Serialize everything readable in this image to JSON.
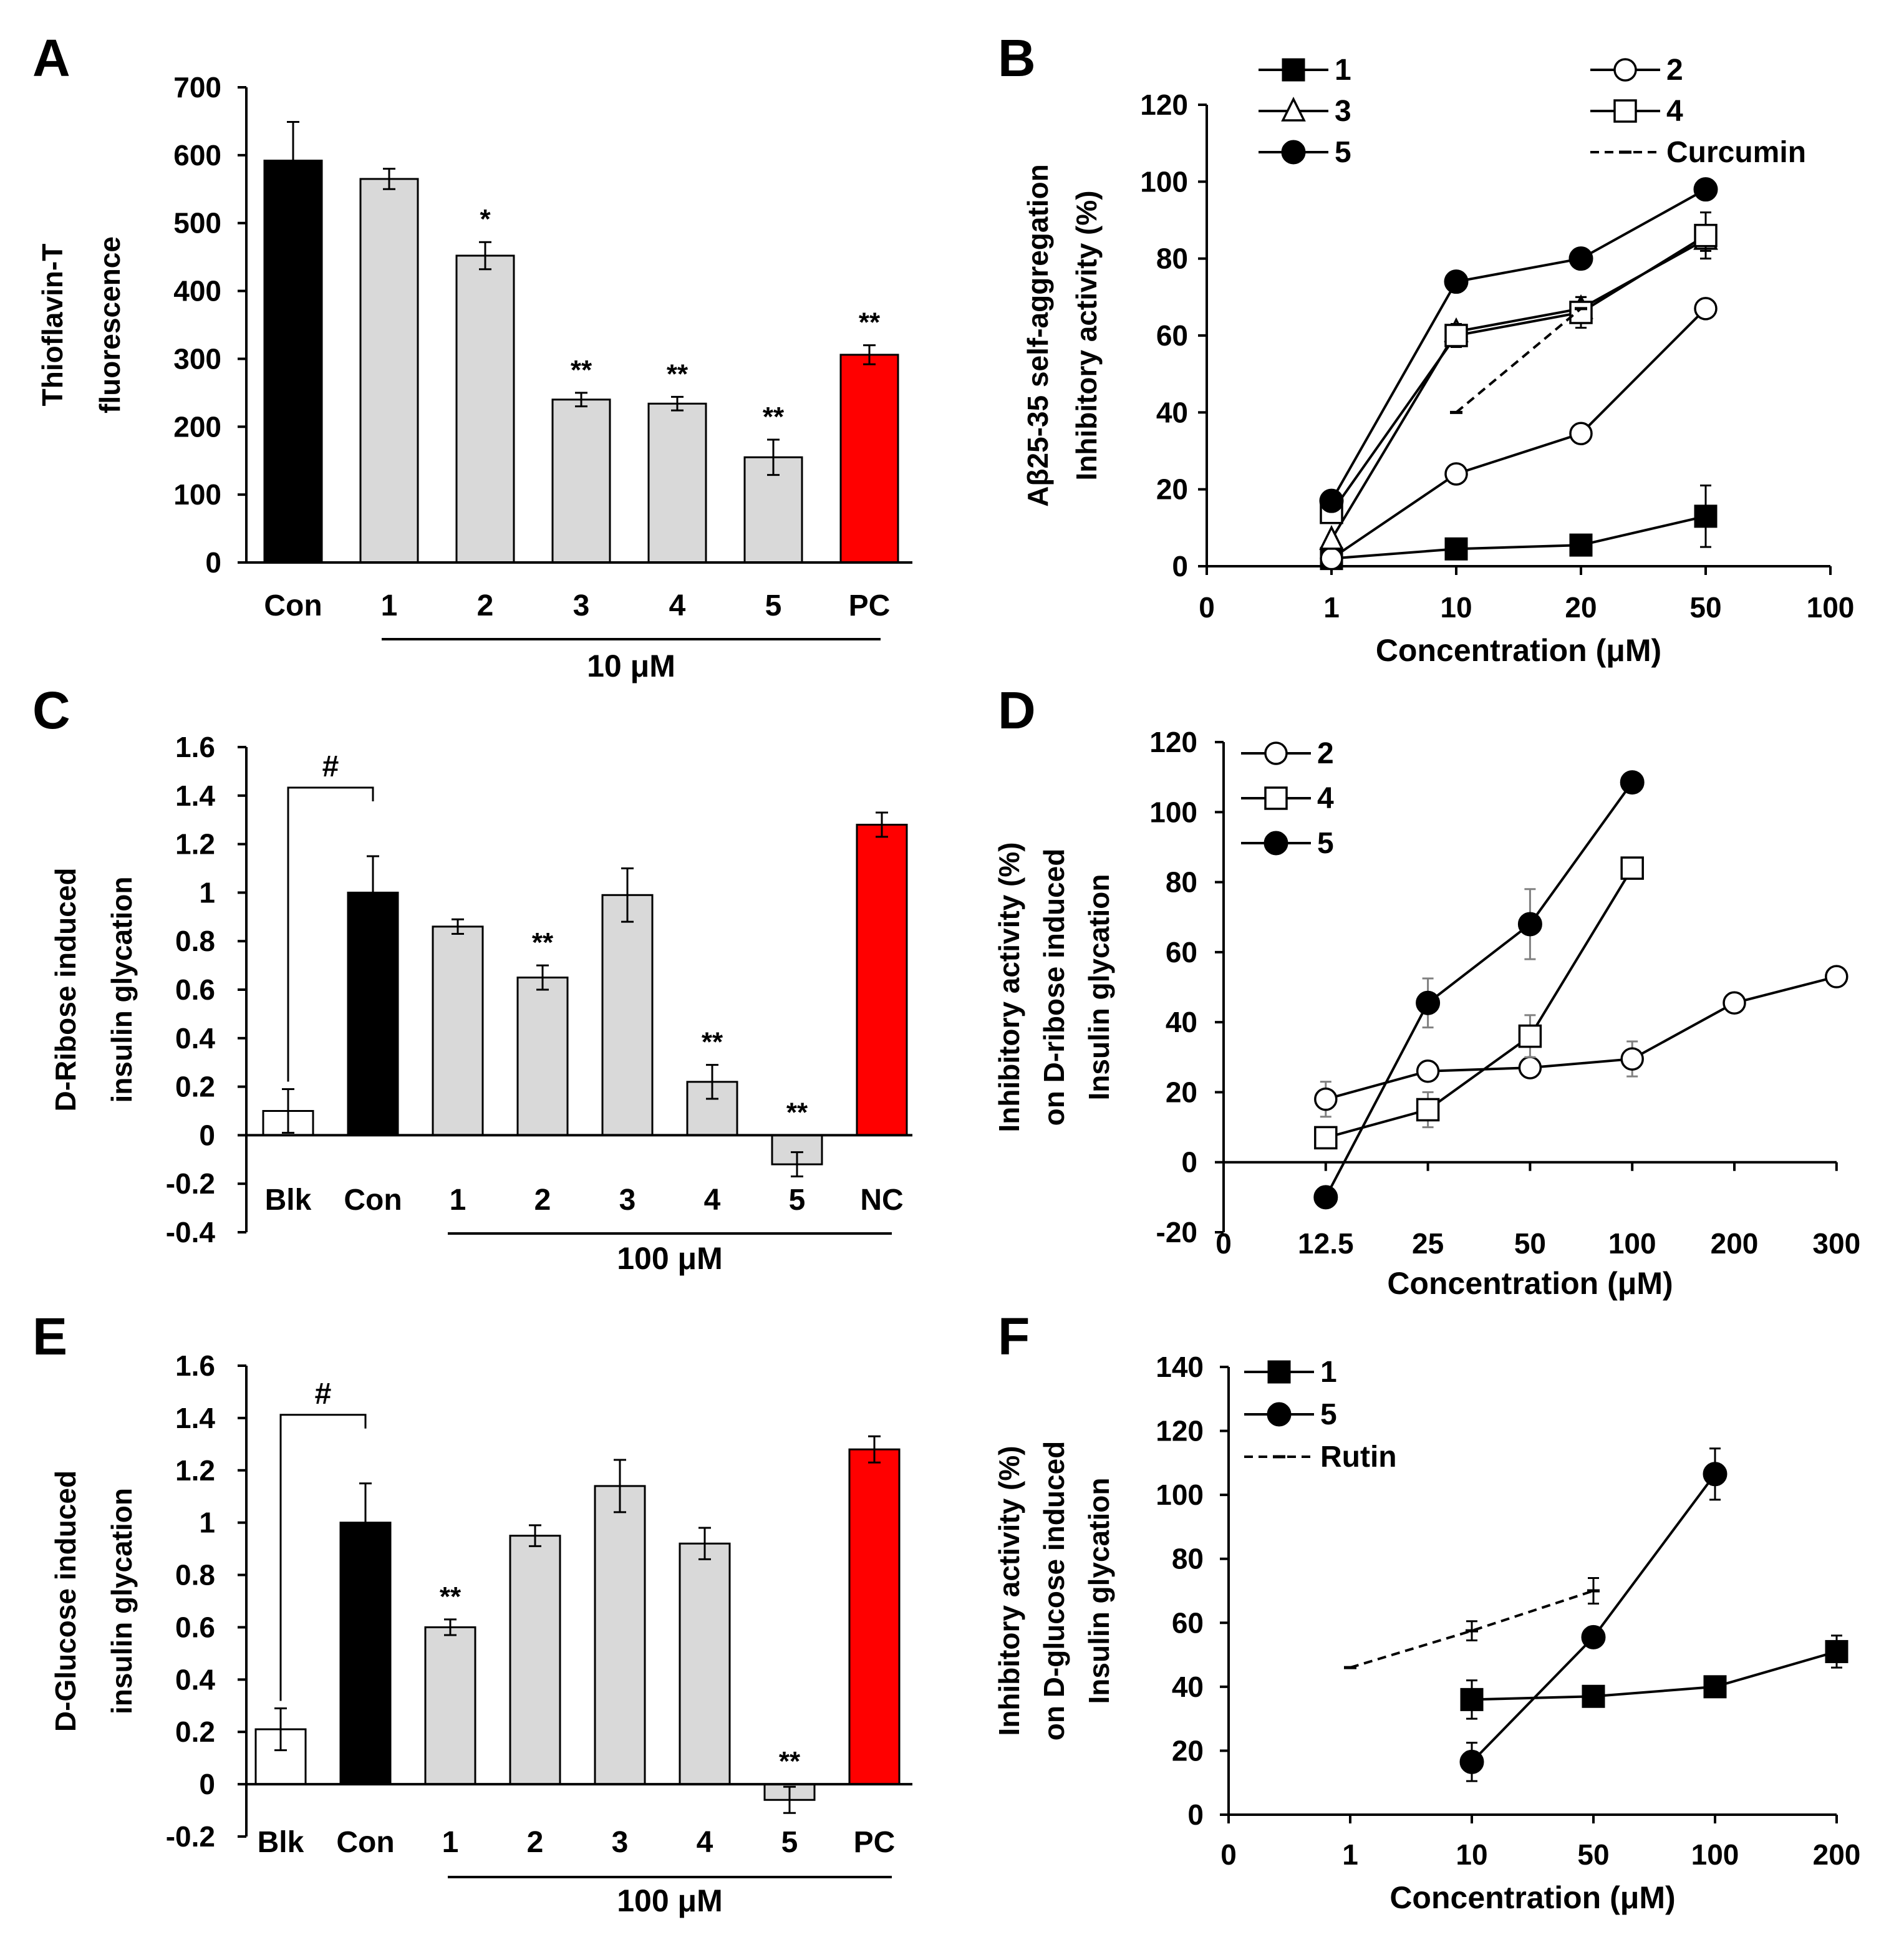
{
  "figure_title": "Six-panel figure: thioflavin-T fluorescence, Aβ25-35 self-aggregation inhibition, and insulin glycation assays",
  "chart_data": [
    {
      "id": "A",
      "panel_letter": "A",
      "type": "bar",
      "ylabel": [
        "Thioflavin-T",
        "fluorescence"
      ],
      "ylim": [
        0,
        700
      ],
      "yticks": [
        "0",
        "100",
        "200",
        "300",
        "400",
        "500",
        "600",
        "700"
      ],
      "ytick_values": [
        0,
        100,
        200,
        300,
        400,
        500,
        600,
        700
      ],
      "categories": [
        "Con",
        "1",
        "2",
        "3",
        "4",
        "5",
        "PC"
      ],
      "values": [
        592,
        565,
        452,
        240,
        234,
        155,
        306
      ],
      "errors": [
        57,
        15,
        20,
        10,
        10,
        26,
        14
      ],
      "colors": [
        "#000000",
        "#d9d9d9",
        "#d9d9d9",
        "#d9d9d9",
        "#d9d9d9",
        "#d9d9d9",
        "#ff0000"
      ],
      "significance": [
        "",
        "",
        "*",
        "**",
        "**",
        "**",
        "**"
      ],
      "group_label": "10 μM",
      "group_range": [
        1,
        6
      ]
    },
    {
      "id": "B",
      "panel_letter": "B",
      "type": "line",
      "ylabel": [
        "Aβ25-35 self-aggregation",
        "Inhibitory activity (%)"
      ],
      "xlabel": "Concentration (μM)",
      "ylim": [
        0,
        120
      ],
      "yticks": [
        "0",
        "20",
        "40",
        "60",
        "80",
        "100",
        "120"
      ],
      "ytick_values": [
        0,
        20,
        40,
        60,
        80,
        100,
        120
      ],
      "xticks": [
        "0",
        "1",
        "10",
        "20",
        "50",
        "100"
      ],
      "series": [
        {
          "name": "1",
          "marker": "filled-square",
          "x_index": [
            1,
            2,
            3,
            4
          ],
          "values": [
            2,
            4.5,
            5.5,
            13
          ],
          "errors": [
            0,
            0,
            0,
            8
          ]
        },
        {
          "name": "2",
          "marker": "open-circle",
          "x_index": [
            1,
            2,
            3,
            4
          ],
          "values": [
            2,
            24,
            34.5,
            67
          ],
          "errors": [
            0,
            0,
            0,
            2
          ]
        },
        {
          "name": "3",
          "marker": "open-triangle",
          "x_index": [
            1,
            2,
            3,
            4
          ],
          "values": [
            7,
            61,
            67,
            85
          ],
          "errors": [
            0,
            0,
            3,
            3
          ]
        },
        {
          "name": "4",
          "marker": "open-square",
          "x_index": [
            1,
            2,
            3,
            4
          ],
          "values": [
            14,
            60,
            66,
            86
          ],
          "errors": [
            0,
            3,
            4,
            6
          ]
        },
        {
          "name": "5",
          "marker": "filled-circle",
          "x_index": [
            1,
            2,
            3,
            4
          ],
          "values": [
            17,
            74,
            80,
            98
          ],
          "errors": [
            0,
            0,
            0,
            0
          ]
        },
        {
          "name": "Curcumin",
          "marker": "dash",
          "dashed": true,
          "x_index": [
            2,
            3
          ],
          "values": [
            40,
            67
          ],
          "errors": [
            0,
            0
          ]
        }
      ]
    },
    {
      "id": "C",
      "panel_letter": "C",
      "type": "bar",
      "ylabel": [
        "D-Ribose induced",
        "insulin glycation"
      ],
      "ylim": [
        -0.4,
        1.6
      ],
      "yticks": [
        "-0.4",
        "-0.2",
        "0",
        "0.2",
        "0.4",
        "0.6",
        "0.8",
        "1",
        "1.2",
        "1.4",
        "1.6"
      ],
      "ytick_values": [
        -0.4,
        -0.2,
        0,
        0.2,
        0.4,
        0.6,
        0.8,
        1,
        1.2,
        1.4,
        1.6
      ],
      "categories": [
        "Blk",
        "Con",
        "1",
        "2",
        "3",
        "4",
        "5",
        "NC"
      ],
      "values": [
        0.1,
        1.0,
        0.86,
        0.65,
        0.99,
        0.22,
        -0.12,
        1.28
      ],
      "errors": [
        0.09,
        0.15,
        0.03,
        0.05,
        0.11,
        0.07,
        0.05,
        0.05
      ],
      "colors": [
        "#ffffff",
        "#000000",
        "#d9d9d9",
        "#d9d9d9",
        "#d9d9d9",
        "#d9d9d9",
        "#d9d9d9",
        "#ff0000"
      ],
      "significance": [
        "",
        "",
        "",
        "**",
        "",
        "**",
        "**",
        ""
      ],
      "hash_label": "#",
      "group_label": "100 μM",
      "group_range": [
        2,
        7
      ]
    },
    {
      "id": "D",
      "panel_letter": "D",
      "type": "line",
      "ylabel": [
        "Inhibitory activity (%)",
        "on D-ribose induced",
        "Insulin glycation"
      ],
      "xlabel": "Concentration (μM)",
      "ylim": [
        -20,
        120
      ],
      "yticks": [
        "-20",
        "0",
        "20",
        "40",
        "60",
        "80",
        "100",
        "120"
      ],
      "ytick_values": [
        -20,
        0,
        20,
        40,
        60,
        80,
        100,
        120
      ],
      "xticks": [
        "0",
        "12.5",
        "25",
        "50",
        "100",
        "200",
        "300"
      ],
      "series": [
        {
          "name": "2",
          "marker": "open-circle",
          "x_index": [
            1,
            2,
            3,
            4,
            5,
            6
          ],
          "values": [
            18,
            26,
            27,
            29.5,
            45.5,
            53
          ],
          "errors": [
            5,
            0,
            0,
            5,
            0,
            0
          ]
        },
        {
          "name": "4",
          "marker": "open-square",
          "x_index": [
            1,
            2,
            3,
            4
          ],
          "values": [
            7,
            15,
            36,
            84
          ],
          "errors": [
            0,
            5,
            6,
            0
          ]
        },
        {
          "name": "5",
          "marker": "filled-circle",
          "x_index": [
            1,
            2,
            3,
            4
          ],
          "values": [
            -10,
            45.5,
            68,
            108.5
          ],
          "errors": [
            0,
            7,
            10,
            0
          ]
        }
      ]
    },
    {
      "id": "E",
      "panel_letter": "E",
      "type": "bar",
      "ylabel": [
        "D-Glucose induced",
        "insulin glycation"
      ],
      "ylim": [
        -0.2,
        1.6
      ],
      "yticks": [
        "-0.2",
        "0",
        "0.2",
        "0.4",
        "0.6",
        "0.8",
        "1",
        "1.2",
        "1.4",
        "1.6"
      ],
      "ytick_values": [
        -0.2,
        0,
        0.2,
        0.4,
        0.6,
        0.8,
        1,
        1.2,
        1.4,
        1.6
      ],
      "categories": [
        "Blk",
        "Con",
        "1",
        "2",
        "3",
        "4",
        "5",
        "PC"
      ],
      "values": [
        0.21,
        1.0,
        0.6,
        0.95,
        1.14,
        0.92,
        -0.06,
        1.28
      ],
      "errors": [
        0.08,
        0.15,
        0.03,
        0.04,
        0.1,
        0.06,
        0.05,
        0.05
      ],
      "colors": [
        "#ffffff",
        "#000000",
        "#d9d9d9",
        "#d9d9d9",
        "#d9d9d9",
        "#d9d9d9",
        "#d9d9d9",
        "#ff0000"
      ],
      "significance": [
        "",
        "",
        "**",
        "",
        "",
        "",
        "**",
        ""
      ],
      "hash_label": "#",
      "group_label": "100 μM",
      "group_range": [
        2,
        7
      ]
    },
    {
      "id": "F",
      "panel_letter": "F",
      "type": "line",
      "ylabel": [
        "Inhibitory activity (%)",
        "on D-glucose induced",
        "Insulin glycation"
      ],
      "xlabel": "Concentration (μM)",
      "ylim": [
        0,
        140
      ],
      "yticks": [
        "0",
        "20",
        "40",
        "60",
        "80",
        "100",
        "120",
        "140"
      ],
      "ytick_values": [
        0,
        20,
        40,
        60,
        80,
        100,
        120,
        140
      ],
      "xticks": [
        "0",
        "1",
        "10",
        "50",
        "100",
        "200"
      ],
      "series": [
        {
          "name": "1",
          "marker": "filled-square",
          "x_index": [
            2,
            3,
            4,
            5
          ],
          "values": [
            36,
            37,
            40,
            51
          ],
          "errors": [
            6,
            0,
            0,
            5
          ]
        },
        {
          "name": "5",
          "marker": "filled-circle",
          "x_index": [
            2,
            3,
            4
          ],
          "values": [
            16.5,
            55.5,
            106.5
          ],
          "errors": [
            6,
            0,
            8
          ]
        },
        {
          "name": "Rutin",
          "marker": "dash",
          "dashed": true,
          "x_index": [
            1,
            2,
            3
          ],
          "values": [
            46,
            57.5,
            70
          ],
          "errors": [
            0,
            3,
            4
          ]
        }
      ]
    }
  ]
}
